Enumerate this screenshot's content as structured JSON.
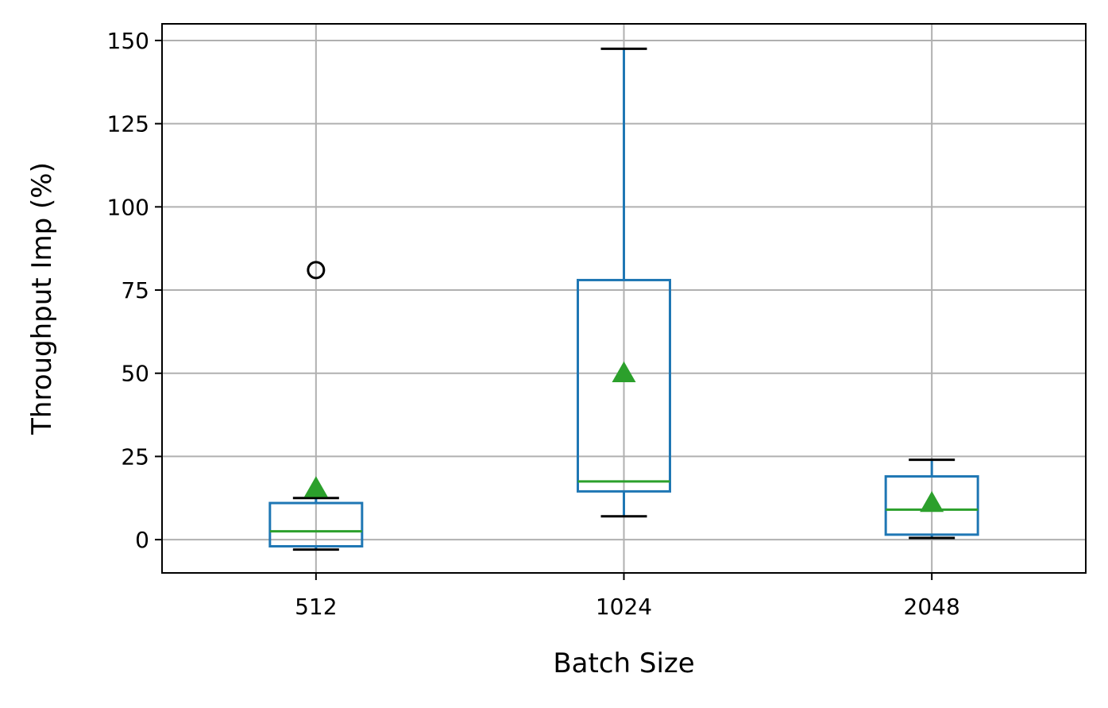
{
  "chart_data": {
    "type": "box",
    "xlabel": "Batch Size",
    "ylabel": "Throughput Imp (%)",
    "categories": [
      "512",
      "1024",
      "2048"
    ],
    "ylim": [
      -10,
      155
    ],
    "yticks": [
      0,
      25,
      50,
      75,
      100,
      125,
      150
    ],
    "grid": true,
    "boxes": [
      {
        "category": "512",
        "whisker_low": -3,
        "q1": -2,
        "median": 2.5,
        "q3": 11,
        "whisker_high": 12.5,
        "mean": 15.5,
        "outliers": [
          81
        ]
      },
      {
        "category": "1024",
        "whisker_low": 7,
        "q1": 14.5,
        "median": 17.5,
        "q3": 78,
        "whisker_high": 147.5,
        "mean": 50,
        "outliers": []
      },
      {
        "category": "2048",
        "whisker_low": 0.5,
        "q1": 1.5,
        "median": 9,
        "q3": 19,
        "whisker_high": 24,
        "mean": 11,
        "outliers": []
      }
    ],
    "colors": {
      "box": "#1f77b4",
      "median": "#2ca02c",
      "mean": "#2ca02c",
      "whisker_cap": "#000000",
      "grid": "#b0b0b0"
    }
  }
}
